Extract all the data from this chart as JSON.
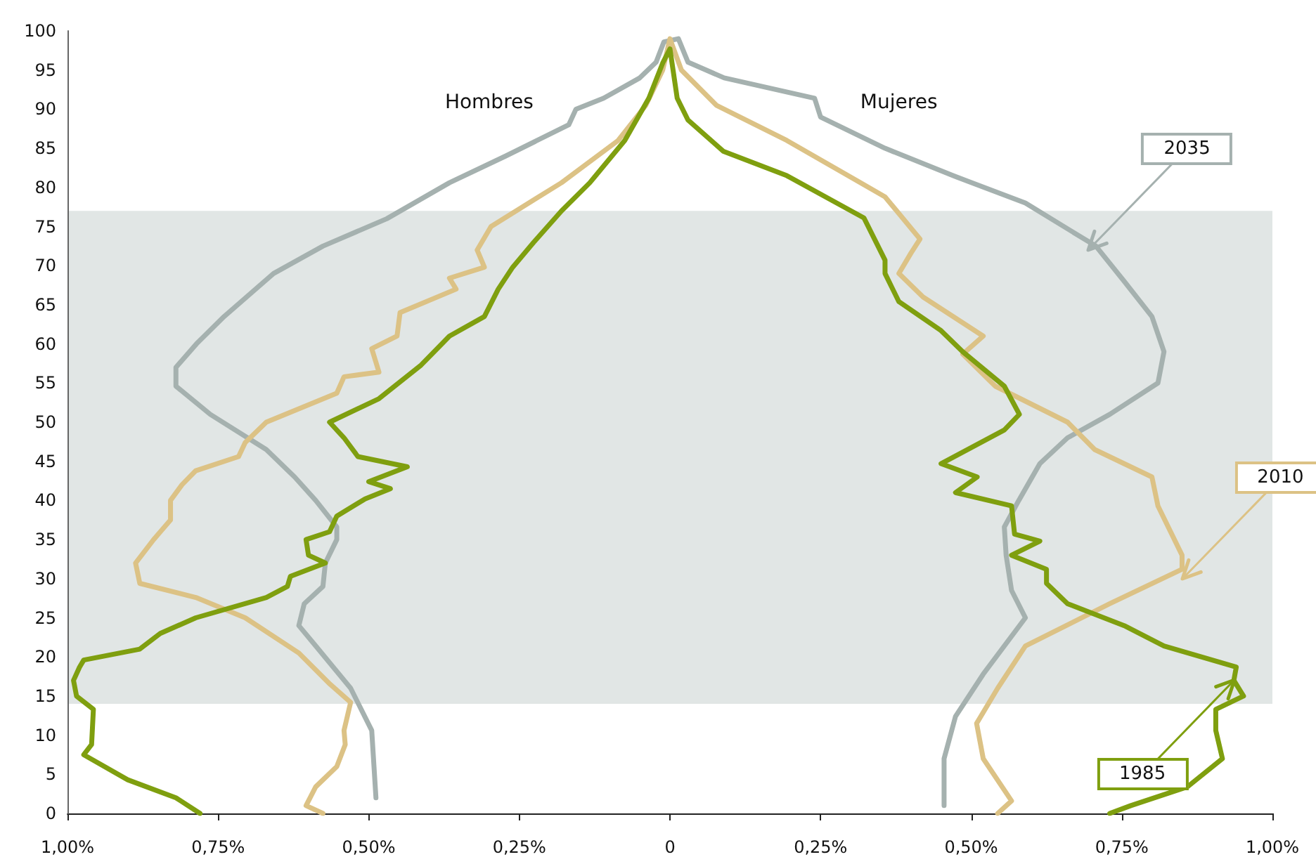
{
  "chart_data": {
    "type": "line",
    "xlim": [
      -1,
      1
    ],
    "xticks": [
      {
        "value": -1,
        "label": "1,00%"
      },
      {
        "value": -0.75,
        "label": "0,75%"
      },
      {
        "value": -0.5,
        "label": "0,50%"
      },
      {
        "value": -0.25,
        "label": "0,25%"
      },
      {
        "value": 0,
        "label": "0"
      },
      {
        "value": 0.25,
        "label": "0,25%"
      },
      {
        "value": 0.5,
        "label": "0,50%"
      },
      {
        "value": 0.75,
        "label": "0,75%"
      },
      {
        "value": 1,
        "label": "1,00%"
      }
    ],
    "ylim": [
      0,
      100
    ],
    "yticks": [
      0,
      5,
      10,
      15,
      20,
      25,
      30,
      35,
      40,
      45,
      50,
      55,
      60,
      65,
      70,
      75,
      80,
      85,
      90,
      95,
      100
    ],
    "grid": false,
    "marker": "none",
    "line_style": "solid",
    "bands": [
      {
        "axis": "y",
        "from": 14,
        "to": 77,
        "color": "#e1e6e5"
      }
    ],
    "series": [
      {
        "color": "#a5b1af",
        "x": [
          -0.488,
          -0.495,
          -0.53,
          -0.588,
          -0.616,
          -0.607,
          -0.576,
          -0.572,
          -0.553,
          -0.553,
          -0.588,
          -0.623,
          -0.67,
          -0.763,
          -0.82,
          -0.82,
          -0.786,
          -0.74,
          -0.658,
          -0.576,
          -0.47,
          -0.366,
          -0.273,
          -0.168,
          -0.156,
          -0.11,
          -0.05,
          -0.023,
          -0.01,
          0.014,
          0.03,
          0.09,
          0.24,
          0.25,
          0.357,
          0.47,
          0.59,
          0.707,
          0.754,
          0.8,
          0.82,
          0.81,
          0.73,
          0.66,
          0.614,
          0.579,
          0.555,
          0.558,
          0.567,
          0.59,
          0.52,
          0.474,
          0.455,
          0.455
        ],
        "values": [
          2,
          10.6,
          16,
          21.4,
          24,
          26.8,
          29,
          32,
          35,
          36.6,
          40,
          43,
          46.5,
          51,
          54.6,
          57,
          60,
          63.5,
          69,
          72.5,
          76,
          80.6,
          84,
          88,
          90,
          91.4,
          94,
          96,
          98.6,
          99,
          96,
          94,
          91.4,
          89,
          85,
          81.5,
          78,
          72.5,
          68,
          63.5,
          59,
          55,
          51,
          48,
          44.7,
          40,
          36.6,
          33,
          28.5,
          25,
          17.8,
          12.4,
          7,
          1
        ]
      },
      {
        "color": "#dcc285",
        "x": [
          -0.576,
          -0.604,
          -0.588,
          -0.553,
          -0.539,
          -0.541,
          -0.53,
          -0.564,
          -0.616,
          -0.705,
          -0.787,
          -0.88,
          -0.887,
          -0.857,
          -0.829,
          -0.829,
          -0.81,
          -0.787,
          -0.716,
          -0.705,
          -0.67,
          -0.553,
          -0.541,
          -0.483,
          -0.495,
          -0.453,
          -0.448,
          -0.355,
          -0.366,
          -0.308,
          -0.32,
          -0.297,
          -0.18,
          -0.086,
          -0.04,
          -0.012,
          0,
          0.019,
          0.077,
          0.194,
          0.357,
          0.415,
          0.4,
          0.38,
          0.42,
          0.52,
          0.486,
          0.54,
          0.66,
          0.705,
          0.8,
          0.81,
          0.85,
          0.85,
          0.73,
          0.59,
          0.544,
          0.509,
          0.52,
          0.567,
          0.544
        ],
        "values": [
          0,
          1,
          3.4,
          6,
          8.8,
          10.6,
          14.2,
          16.5,
          20.5,
          25,
          27.6,
          29.4,
          32,
          35,
          37.5,
          40,
          42,
          43.8,
          45.6,
          47.4,
          50,
          53.7,
          55.8,
          56.4,
          59.4,
          61,
          64,
          67,
          68.4,
          69.8,
          72,
          75,
          80.6,
          86,
          90.5,
          95,
          99,
          95,
          90.5,
          86,
          78.8,
          73.4,
          71.6,
          69,
          66,
          61,
          58.7,
          54.6,
          50,
          46.5,
          43,
          39.3,
          33,
          31.2,
          26.8,
          21.4,
          16,
          11.5,
          7,
          1.6,
          0
        ]
      },
      {
        "color": "#7f9f0f",
        "x": [
          -0.78,
          -0.82,
          -0.9,
          -0.973,
          -0.96,
          -0.957,
          -0.985,
          -0.99,
          -0.98,
          -0.973,
          -0.88,
          -0.846,
          -0.787,
          -0.67,
          -0.635,
          -0.63,
          -0.572,
          -0.6,
          -0.604,
          -0.565,
          -0.553,
          -0.506,
          -0.464,
          -0.5,
          -0.436,
          -0.518,
          -0.541,
          -0.565,
          -0.483,
          -0.413,
          -0.366,
          -0.308,
          -0.285,
          -0.261,
          -0.226,
          -0.18,
          -0.133,
          -0.075,
          -0.035,
          -0.012,
          0,
          0.012,
          0.03,
          0.089,
          0.194,
          0.322,
          0.357,
          0.357,
          0.38,
          0.45,
          0.486,
          0.555,
          0.58,
          0.555,
          0.45,
          0.51,
          0.474,
          0.567,
          0.572,
          0.614,
          0.567,
          0.625,
          0.625,
          0.66,
          0.754,
          0.82,
          0.94,
          0.936,
          0.952,
          0.906,
          0.906,
          0.917,
          0.859,
          0.765,
          0.73
        ],
        "values": [
          0,
          2,
          4.3,
          7.5,
          8.8,
          13.3,
          15,
          17,
          18.7,
          19.6,
          21,
          23,
          25,
          27.6,
          29,
          30.3,
          32,
          33,
          35,
          36,
          38,
          40.2,
          41.5,
          42.4,
          44.3,
          45.6,
          48,
          50,
          53,
          57.3,
          61,
          63.5,
          67,
          69.8,
          73,
          77,
          80.6,
          86,
          91.4,
          95.9,
          97.7,
          91.4,
          88.6,
          84.6,
          81.5,
          76.1,
          70.7,
          69,
          65.4,
          61.7,
          59,
          54.6,
          51,
          49,
          44.7,
          43,
          41,
          39.3,
          35.7,
          34.8,
          33,
          31.2,
          29.4,
          26.8,
          24,
          21.4,
          18.7,
          17,
          15,
          13.3,
          10.6,
          7,
          3.4,
          1,
          0
        ]
      }
    ],
    "annotations": [
      "Hombres",
      "Mujeres",
      {
        "text": "2035",
        "x": 0.695,
        "y": 72
      },
      {
        "text": "2010",
        "x": 0.85,
        "y": 30
      },
      {
        "text": "1985",
        "x": 0.936,
        "y": 17
      }
    ]
  }
}
